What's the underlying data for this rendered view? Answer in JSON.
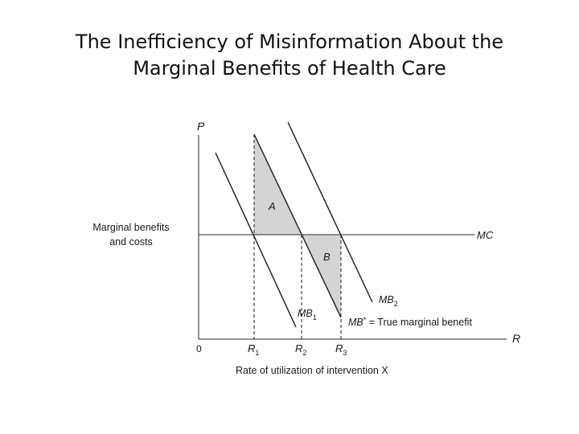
{
  "title": {
    "line1": "The Inefficiency of Misinformation About the",
    "line2": "Marginal Benefits of Health Care"
  },
  "axes": {
    "y_label": "P",
    "x_label": "R",
    "origin": "0",
    "y_title_line1": "Marginal benefits",
    "y_title_line2": "and costs",
    "x_title": "Rate of utilization of intervention X"
  },
  "curves": {
    "mc": "MC",
    "mb1_base": "MB",
    "mb1_sub": "1",
    "mb2_base": "MB",
    "mb2_sub": "2",
    "mbstar_base": "MB",
    "mbstar_sup": "*",
    "mbstar_desc": " = True marginal benefit"
  },
  "areas": {
    "a": "A",
    "b": "B"
  },
  "ticks": [
    {
      "base": "R",
      "sub": "1"
    },
    {
      "base": "R",
      "sub": "2"
    },
    {
      "base": "R",
      "sub": "3"
    }
  ],
  "colors": {
    "line": "#1a1a1a",
    "shade": "#d4d4d4",
    "axis": "#555555"
  }
}
